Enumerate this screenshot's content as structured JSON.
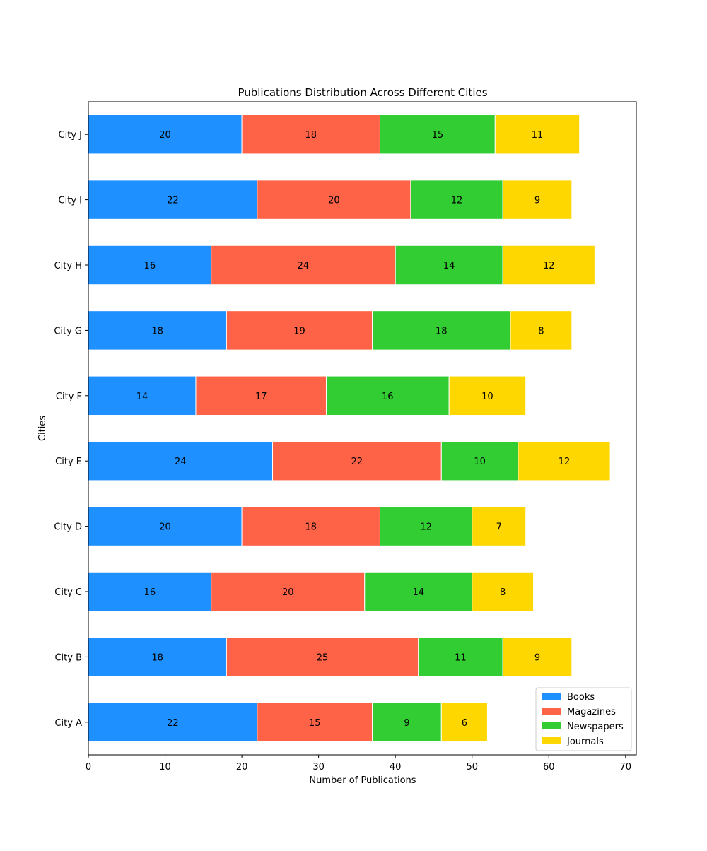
{
  "chart_data": {
    "type": "bar",
    "orientation": "horizontal",
    "stacked": true,
    "title": "Publications Distribution Across Different Cities",
    "xlabel": "Number of Publications",
    "ylabel": "Cities",
    "xlim": [
      0,
      71.4
    ],
    "xticks": [
      0,
      10,
      20,
      30,
      40,
      50,
      60,
      70
    ],
    "categories": [
      "City A",
      "City B",
      "City C",
      "City D",
      "City E",
      "City F",
      "City G",
      "City H",
      "City I",
      "City J"
    ],
    "series": [
      {
        "name": "Books",
        "color": "#1e90ff",
        "values": [
          22,
          18,
          16,
          20,
          24,
          14,
          18,
          16,
          22,
          20
        ]
      },
      {
        "name": "Magazines",
        "color": "#ff6347",
        "values": [
          15,
          25,
          20,
          18,
          22,
          17,
          19,
          24,
          20,
          18
        ]
      },
      {
        "name": "Newspapers",
        "color": "#32cd32",
        "values": [
          9,
          11,
          14,
          12,
          10,
          16,
          18,
          14,
          12,
          15
        ]
      },
      {
        "name": "Journals",
        "color": "#ffd700",
        "values": [
          6,
          9,
          8,
          7,
          12,
          10,
          8,
          12,
          9,
          11
        ]
      }
    ],
    "data_labels": true,
    "grid": false,
    "legend_position": "lower right"
  }
}
